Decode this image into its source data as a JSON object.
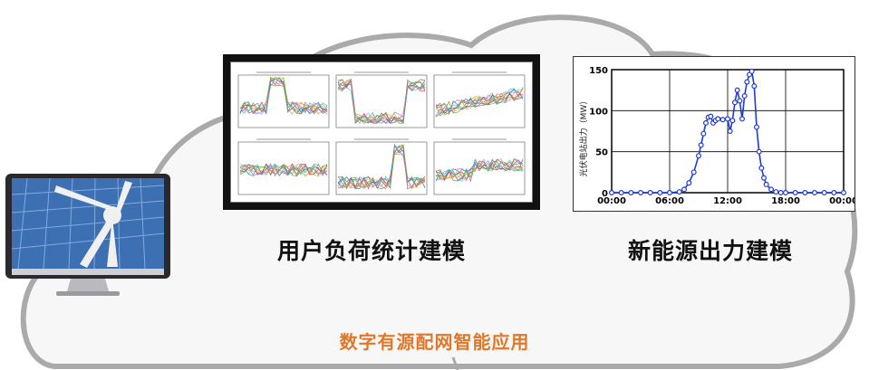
{
  "captions": {
    "load_modeling": "用户负荷统计建模",
    "renewable_modeling": "新能源出力建模",
    "application": "数字有源配网智能应用"
  },
  "colors": {
    "caption_text": "#111111",
    "application_text": "#e0782a",
    "cloud_fill": "#f7f7f7",
    "cloud_stroke": "#aaaaaa",
    "series_color": "#1f3ad6"
  },
  "icons": {
    "monitor": "desktop-monitor-icon",
    "wind_turbine": "wind-turbine-icon"
  },
  "chart_data": {
    "type": "line",
    "title": "",
    "xlabel": "",
    "ylabel": "光伏电站出力（MW）",
    "x_ticks": [
      "00:00",
      "06:00",
      "12:00",
      "18:00",
      "00:00"
    ],
    "y_ticks": [
      0,
      50,
      100,
      150
    ],
    "xlim_hours": [
      0,
      24
    ],
    "ylim": [
      0,
      150
    ],
    "grid": true,
    "series": [
      {
        "x_hours": [
          0,
          1,
          2,
          3,
          4,
          5,
          6,
          7,
          7.5,
          8,
          8.5,
          9,
          9.25,
          9.5,
          9.75,
          10,
          10.25,
          10.5,
          10.75,
          11,
          11.5,
          12,
          12.25,
          12.5,
          12.75,
          13,
          13.25,
          13.5,
          13.75,
          14,
          14.25,
          14.5,
          14.75,
          15,
          15.25,
          15.5,
          15.75,
          16,
          16.5,
          17,
          17.5,
          18,
          19,
          20,
          21,
          22,
          23,
          24
        ],
        "values": [
          0,
          0,
          0,
          0,
          0,
          0,
          0,
          1,
          4,
          12,
          25,
          45,
          58,
          72,
          85,
          92,
          93,
          85,
          88,
          90,
          89,
          90,
          75,
          88,
          110,
          125,
          112,
          90,
          118,
          135,
          144,
          148,
          130,
          80,
          50,
          30,
          18,
          10,
          4,
          1,
          0,
          0,
          0,
          0,
          0,
          0,
          0,
          0
        ]
      }
    ]
  }
}
